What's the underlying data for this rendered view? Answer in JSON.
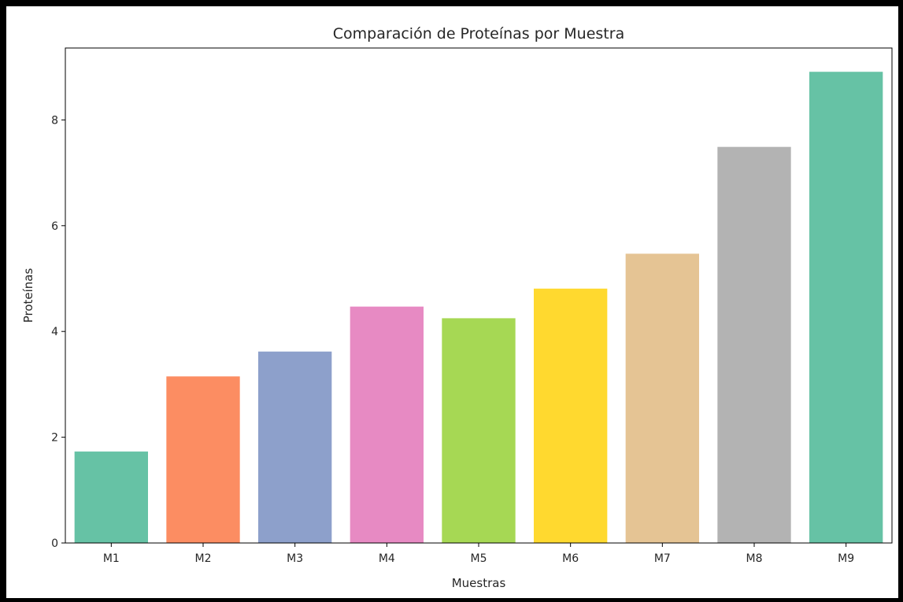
{
  "chart_data": {
    "type": "bar",
    "title": "Comparación de Proteínas por Muestra",
    "xlabel": "Muestras",
    "ylabel": "Proteínas",
    "categories": [
      "M1",
      "M2",
      "M3",
      "M4",
      "M5",
      "M6",
      "M7",
      "M8",
      "M9"
    ],
    "values": [
      1.73,
      3.15,
      3.62,
      4.47,
      4.25,
      4.81,
      5.47,
      7.49,
      8.91
    ],
    "colors": [
      "#66c2a5",
      "#fc8d62",
      "#8da0cb",
      "#e78ac3",
      "#a6d854",
      "#ffd92f",
      "#e5c494",
      "#b3b3b3",
      "#66c2a5"
    ],
    "yticks": [
      0,
      2,
      4,
      6,
      8
    ],
    "ytick_labels": [
      "0",
      "2",
      "4",
      "6",
      "8"
    ],
    "ylim": [
      0,
      9.36
    ],
    "grid": false,
    "legend": "none"
  }
}
